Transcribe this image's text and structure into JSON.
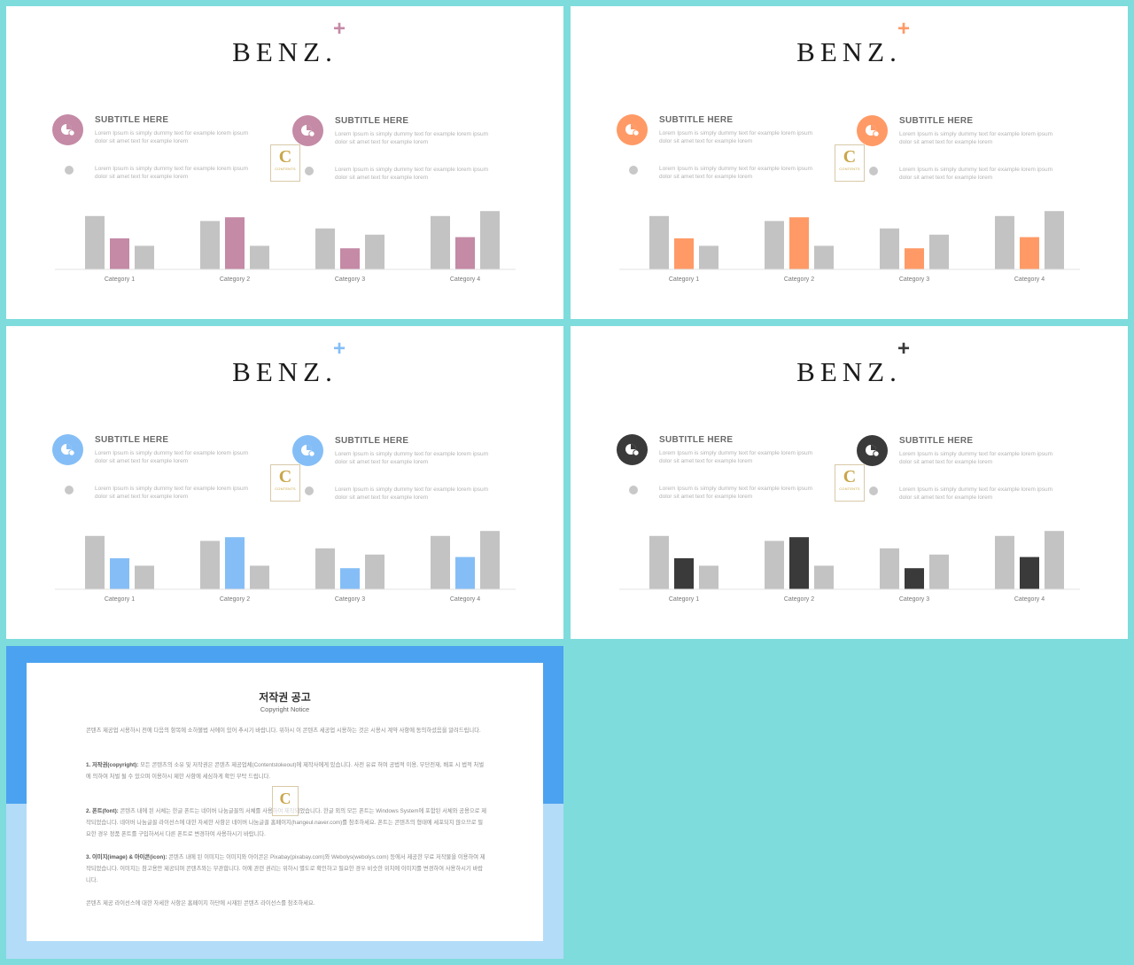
{
  "slides": [
    {
      "brand": "BENZ.",
      "accent": "#c48aa6",
      "plus": "+",
      "features": [
        {
          "title": "SUBTITLE HERE",
          "line1": "Lorem Ipsum is simply dummy text for example lorem ipsum dolor sit amet text for example lorem",
          "line2": "Lorem Ipsum is simply dummy text for example lorem ipsum dolor sit amet text for example lorem"
        },
        {
          "title": "SUBTITLE HERE",
          "line1": "Lorem Ipsum is simply dummy text for example lorem ipsum dolor sit amet text for example lorem",
          "line2": "Lorem Ipsum is simply dummy text for example lorem ipsum dolor sit amet text for example lorem"
        }
      ],
      "chart_data": {
        "type": "bar",
        "categories": [
          "Category 1",
          "Category 2",
          "Category 3",
          "Category 4"
        ],
        "series": [
          {
            "values": [
              4.3,
              3.9,
              3.3,
              4.3
            ]
          },
          {
            "values": [
              2.5,
              4.2,
              1.7,
              2.6
            ]
          },
          {
            "values": [
              1.9,
              1.9,
              2.8,
              4.7
            ]
          }
        ],
        "ylim": [
          0,
          5
        ]
      }
    },
    {
      "brand": "BENZ.",
      "accent": "#ff9a66",
      "plus": "+",
      "features": [
        {
          "title": "SUBTITLE HERE",
          "line1": "Lorem Ipsum is simply dummy text for example lorem ipsum dolor sit amet text for example lorem",
          "line2": "Lorem Ipsum is simply dummy text for example lorem ipsum dolor sit amet text for example lorem"
        },
        {
          "title": "SUBTITLE HERE",
          "line1": "Lorem Ipsum is simply dummy text for example lorem ipsum dolor sit amet text for example lorem",
          "line2": "Lorem Ipsum is simply dummy text for example lorem ipsum dolor sit amet text for example lorem"
        }
      ],
      "chart_data": {
        "type": "bar",
        "categories": [
          "Category 1",
          "Category 2",
          "Category 3",
          "Category 4"
        ],
        "series": [
          {
            "values": [
              4.3,
              3.9,
              3.3,
              4.3
            ]
          },
          {
            "values": [
              2.5,
              4.2,
              1.7,
              2.6
            ]
          },
          {
            "values": [
              1.9,
              1.9,
              2.8,
              4.7
            ]
          }
        ],
        "ylim": [
          0,
          5
        ]
      }
    },
    {
      "brand": "BENZ.",
      "accent": "#85bef6",
      "plus": "+",
      "features": [
        {
          "title": "SUBTITLE HERE",
          "line1": "Lorem Ipsum is simply dummy text for example lorem ipsum dolor sit amet text for example lorem",
          "line2": "Lorem Ipsum is simply dummy text for example lorem ipsum dolor sit amet text for example lorem"
        },
        {
          "title": "SUBTITLE HERE",
          "line1": "Lorem Ipsum is simply dummy text for example lorem ipsum dolor sit amet text for example lorem",
          "line2": "Lorem Ipsum is simply dummy text for example lorem ipsum dolor sit amet text for example lorem"
        }
      ],
      "chart_data": {
        "type": "bar",
        "categories": [
          "Category 1",
          "Category 2",
          "Category 3",
          "Category 4"
        ],
        "series": [
          {
            "values": [
              4.3,
              3.9,
              3.3,
              4.3
            ]
          },
          {
            "values": [
              2.5,
              4.2,
              1.7,
              2.6
            ]
          },
          {
            "values": [
              1.9,
              1.9,
              2.8,
              4.7
            ]
          }
        ],
        "ylim": [
          0,
          5
        ]
      }
    },
    {
      "brand": "BENZ.",
      "accent": "#3a3a3a",
      "plus": "+",
      "features": [
        {
          "title": "SUBTITLE HERE",
          "line1": "Lorem Ipsum is simply dummy text for example lorem ipsum dolor sit amet text for example lorem",
          "line2": "Lorem Ipsum is simply dummy text for example lorem ipsum dolor sit amet text for example lorem"
        },
        {
          "title": "SUBTITLE HERE",
          "line1": "Lorem Ipsum is simply dummy text for example lorem ipsum dolor sit amet text for example lorem",
          "line2": "Lorem Ipsum is simply dummy text for example lorem ipsum dolor sit amet text for example lorem"
        }
      ],
      "chart_data": {
        "type": "bar",
        "categories": [
          "Category 1",
          "Category 2",
          "Category 3",
          "Category 4"
        ],
        "series": [
          {
            "values": [
              4.3,
              3.9,
              3.3,
              4.3
            ]
          },
          {
            "values": [
              2.5,
              4.2,
              1.7,
              2.6
            ]
          },
          {
            "values": [
              1.9,
              1.9,
              2.8,
              4.7
            ]
          }
        ],
        "ylim": [
          0,
          5
        ]
      }
    }
  ],
  "series_gray": "#c3c3c3",
  "stamp": {
    "letter": "C",
    "word": "CONTENTS"
  },
  "copyright": {
    "title": "저작권 공고",
    "subtitle": "Copyright Notice",
    "intro": "콘텐츠 제공업 시용하시 전에 다음의 항목에 소하볼법 사에이 있어 추시기 바랍니다. 위하시 이 콘텐츠 세공업 시용하는 것은 시용시 계약 사항에 동의하셨음을 알려드립니다.",
    "p1_head": "1. 저작권(copyright):",
    "p1": "모든 콘텐츠의 소유 및 저작권은 콘텐츠 제공업체(Contentstokeout)에 제작사에게 있습니다. 사전 유료 허여 공법적 이용, 무단전재, 배포 시 법적 처벌에 의하여 처벌 될 수 있으며 이용하시 제한 사항에 세심하게 확인 부탁 드립니다.",
    "p2_head": "2. 폰트(font):",
    "p2": "콘텐츠 내에 된 서체는 한글 폰트는 네이버 나눔글꼴의 서체를 사용하여 제작되었습니다. 한글 외의 모든 폰트는 Windows System에 포함된 서체와 공용으로 제작되었습니다. 네이버 나눔글꼴 라이선스에 대한 자세한 사항은 네이버 나눔글꼴 홈페이지(hangeul.naver.com)를 참조하세요. 폰트는 콘텐츠의 형태에 세포되지 않으므로 필요한 경우 정품 폰트를 구입하셔서 다른 폰트로 변경하여 사용하시기 바랍니다.",
    "p3_head": "3. 이미지(image) & 아이콘(icon):",
    "p3": "콘텐츠 내에 된 이미지는 이미지와 아이콘은 Pixabay(pixabay.com)와 Webolys(webolys.com) 등에서 제공한 무료 저작물을 이용하여 제작되었습니다. 이미지는 참고용만 제공되며 콘텐츠와는 무관합니다. 이에 관련 권리는 위하시 별도로 확인하고 필요한 경우 비슷한 위치에 이미지를 변경하여 사용하시기 바랍니다.",
    "outro": "콘텐츠 제공 라이선스에 대한 자세한 사항은 홈페이지 하단에 시재된 콘텐츠 라이선스를 참조하세요."
  }
}
